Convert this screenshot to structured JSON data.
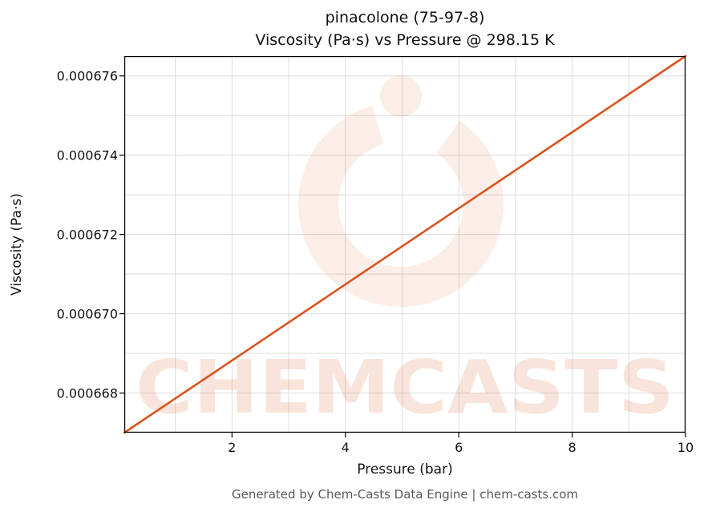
{
  "figure": {
    "bg": "#ffffff",
    "accent": "#d9541e",
    "grid_color": "#dcdcdc",
    "spine_color": "#000000"
  },
  "chart_data": {
    "type": "line",
    "title_line1": "pinacolone (75-97-8)",
    "title_line2": "Viscosity (Pa·s) vs Pressure @ 298.15 K",
    "xlabel": "Pressure (bar)",
    "ylabel": "Viscosity (Pa·s)",
    "xlim": [
      0.1,
      10
    ],
    "ylim": [
      0.000667,
      0.0006765
    ],
    "xticks": [
      2,
      4,
      6,
      8,
      10
    ],
    "xtick_labels": [
      "2",
      "4",
      "6",
      "8",
      "10"
    ],
    "yticks": [
      0.000668,
      0.00067,
      0.000672,
      0.000674,
      0.000676
    ],
    "ytick_labels": [
      "0.000668",
      "0.000670",
      "0.000672",
      "0.000674",
      "0.000676"
    ],
    "xgrid": [
      1,
      2,
      3,
      4,
      5,
      6,
      7,
      8,
      9,
      10
    ],
    "ygrid": [
      0.000668,
      0.000669,
      0.00067,
      0.000671,
      0.000672,
      0.000673,
      0.000674,
      0.000675,
      0.000676
    ],
    "grid": true,
    "legend": false,
    "series": [
      {
        "name": "viscosity-vs-pressure",
        "color": "#d9541e",
        "x": [
          0.1,
          2,
          4,
          6,
          8,
          10
        ],
        "y": [
          0.000667,
          0.00066882,
          0.00067074,
          0.00067266,
          0.00067458,
          0.0006765
        ]
      }
    ]
  },
  "watermark": {
    "text": "CHEMCASTS"
  },
  "footer": {
    "text": "Generated by Chem-Casts Data Engine | chem-casts.com"
  }
}
